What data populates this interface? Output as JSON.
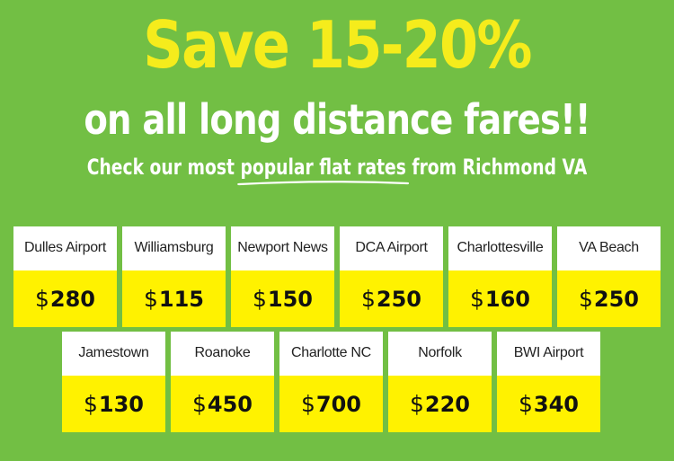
{
  "headline": "Save 15-20%",
  "subhead": "on all long distance fares!!",
  "tagline": {
    "before": "Check our most ",
    "highlight": "popular flat rates",
    "after": " from Richmond VA"
  },
  "currency": "$",
  "colors": {
    "background": "#72bf44",
    "headline": "#f5ec1c",
    "price_band": "#fff200",
    "label_band": "#ffffff"
  },
  "row1": [
    {
      "label": "Dulles Airport",
      "price": "280"
    },
    {
      "label": "Williamsburg",
      "price": "115"
    },
    {
      "label": "Newport News",
      "price": "150"
    },
    {
      "label": "DCA Airport",
      "price": "250"
    },
    {
      "label": "Charlottesville",
      "price": "160"
    },
    {
      "label": "VA Beach",
      "price": "250"
    }
  ],
  "row2": [
    {
      "label": "Jamestown",
      "price": "130"
    },
    {
      "label": "Roanoke",
      "price": "450"
    },
    {
      "label": "Charlotte NC",
      "price": "700"
    },
    {
      "label": "Norfolk",
      "price": "220"
    },
    {
      "label": "BWI Airport",
      "price": "340"
    }
  ]
}
